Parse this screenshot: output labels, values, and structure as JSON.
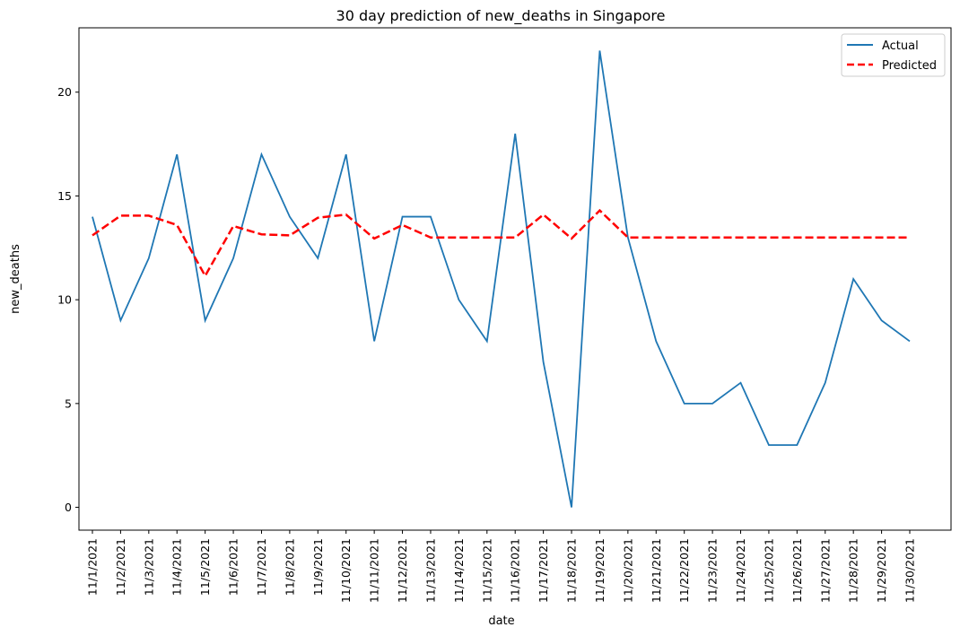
{
  "chart_data": {
    "type": "line",
    "title": "30 day prediction of new_deaths in Singapore",
    "xlabel": "date",
    "ylabel": "new_deaths",
    "ylim": [
      -1.1,
      23.1
    ],
    "yticks": [
      0,
      5,
      10,
      15,
      20
    ],
    "categories": [
      "11/1/2021",
      "11/2/2021",
      "11/3/2021",
      "11/4/2021",
      "11/5/2021",
      "11/6/2021",
      "11/7/2021",
      "11/8/2021",
      "11/9/2021",
      "11/10/2021",
      "11/11/2021",
      "11/12/2021",
      "11/13/2021",
      "11/14/2021",
      "11/15/2021",
      "11/16/2021",
      "11/17/2021",
      "11/18/2021",
      "11/19/2021",
      "11/20/2021",
      "11/21/2021",
      "11/22/2021",
      "11/23/2021",
      "11/24/2021",
      "11/25/2021",
      "11/26/2021",
      "11/27/2021",
      "11/28/2021",
      "11/29/2021",
      "11/30/2021"
    ],
    "series": [
      {
        "name": "Actual",
        "color": "#1f77b4",
        "style": "solid",
        "values": [
          14,
          9,
          12,
          17,
          9,
          12,
          17,
          14,
          12,
          17,
          8,
          14,
          14,
          10,
          8,
          18,
          7,
          0,
          22,
          13,
          8,
          5,
          5,
          6,
          3,
          3,
          6,
          11,
          9,
          8
        ]
      },
      {
        "name": "Predicted",
        "color": "#ff0000",
        "style": "dashed",
        "values": [
          13.1,
          14.05,
          14.05,
          13.6,
          11.15,
          13.55,
          13.15,
          13.1,
          13.95,
          14.1,
          12.95,
          13.6,
          13.0,
          13.0,
          13.0,
          13.0,
          14.1,
          12.95,
          14.3,
          13.0,
          13.0,
          13.0,
          13.0,
          13.0,
          13.0,
          13.0,
          13.0,
          13.0,
          13.0,
          13.0
        ]
      }
    ],
    "legend_position": "top-right",
    "grid": false
  }
}
